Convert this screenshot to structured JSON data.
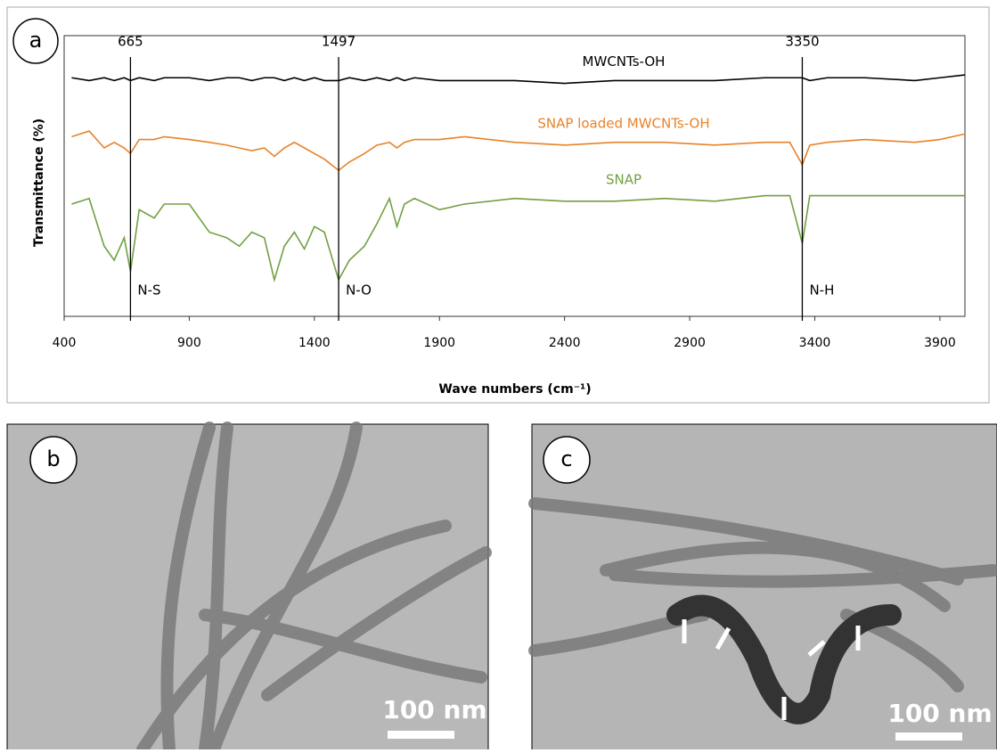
{
  "chart_data": {
    "type": "line",
    "panel_label": "a",
    "y_label": "Transmittance (%)",
    "x_label": "Wave numbers (cm⁻¹)",
    "xlim": [
      400,
      4000
    ],
    "xticks": [
      400,
      900,
      1400,
      1900,
      2400,
      2900,
      3400,
      3900
    ],
    "ylim": [
      0,
      100
    ],
    "x": [
      430,
      500,
      560,
      600,
      640,
      665,
      700,
      760,
      800,
      900,
      980,
      1050,
      1100,
      1150,
      1200,
      1240,
      1280,
      1320,
      1360,
      1400,
      1440,
      1497,
      1540,
      1600,
      1650,
      1700,
      1730,
      1760,
      1800,
      1900,
      2000,
      2200,
      2400,
      2600,
      2800,
      3000,
      3200,
      3300,
      3350,
      3380,
      3450,
      3600,
      3800,
      3900,
      4000
    ],
    "series": [
      {
        "name": "MWCNTs-OH",
        "color": "#000000",
        "values": [
          85,
          84,
          85,
          84,
          85,
          84,
          85,
          84,
          85,
          85,
          84,
          85,
          85,
          84,
          85,
          85,
          84,
          85,
          84,
          85,
          84,
          84,
          85,
          84,
          85,
          84,
          85,
          84,
          85,
          84,
          84,
          84,
          83,
          84,
          84,
          84,
          85,
          85,
          85,
          84,
          85,
          85,
          84,
          85,
          86
        ]
      },
      {
        "name": "SNAP loaded MWCNTs-OH",
        "color": "#e8822a",
        "values": [
          64,
          66,
          60,
          62,
          60,
          58,
          63,
          63,
          64,
          63,
          62,
          61,
          60,
          59,
          60,
          57,
          60,
          62,
          60,
          58,
          56,
          52,
          55,
          58,
          61,
          62,
          60,
          62,
          63,
          63,
          64,
          62,
          61,
          62,
          62,
          61,
          62,
          62,
          54,
          61,
          62,
          63,
          62,
          63,
          65
        ]
      },
      {
        "name": "SNAP",
        "color": "#70a040",
        "values": [
          40,
          42,
          25,
          20,
          28,
          16,
          38,
          35,
          40,
          40,
          30,
          28,
          25,
          30,
          28,
          13,
          25,
          30,
          24,
          32,
          30,
          13,
          20,
          25,
          33,
          42,
          32,
          40,
          42,
          38,
          40,
          42,
          41,
          41,
          42,
          41,
          43,
          43,
          26,
          43,
          43,
          43,
          43,
          43,
          43
        ]
      }
    ],
    "peaks": [
      {
        "x": 665,
        "label": "N-S"
      },
      {
        "x": 1497,
        "label": "N-O"
      },
      {
        "x": 3350,
        "label": "N-H"
      }
    ]
  },
  "panels": [
    {
      "label": "b",
      "scale_bar": "100 nm"
    },
    {
      "label": "c",
      "scale_bar": "100 nm"
    }
  ]
}
